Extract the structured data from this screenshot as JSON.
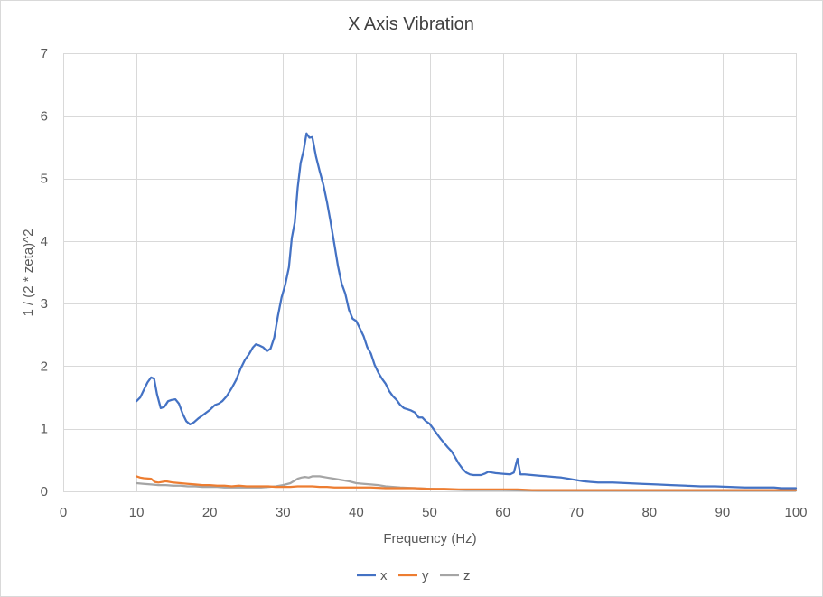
{
  "chart_data": {
    "type": "line",
    "title": "X Axis Vibration",
    "xlabel": "Frequency (Hz)",
    "ylabel": "1 / (2 * zeta)^2",
    "xlim": [
      0,
      100
    ],
    "ylim": [
      0,
      7
    ],
    "xticks": [
      0,
      10,
      20,
      30,
      40,
      50,
      60,
      70,
      80,
      90,
      100
    ],
    "yticks": [
      0,
      1,
      2,
      3,
      4,
      5,
      6,
      7
    ],
    "grid": true,
    "legend": "bottom",
    "series": [
      {
        "name": "x",
        "color": "#4472C4",
        "points": [
          [
            10,
            1.44
          ],
          [
            10.5,
            1.5
          ],
          [
            11,
            1.62
          ],
          [
            11.5,
            1.74
          ],
          [
            12,
            1.82
          ],
          [
            12.4,
            1.8
          ],
          [
            12.8,
            1.55
          ],
          [
            13.3,
            1.33
          ],
          [
            13.8,
            1.35
          ],
          [
            14.3,
            1.44
          ],
          [
            14.8,
            1.46
          ],
          [
            15.3,
            1.47
          ],
          [
            15.8,
            1.4
          ],
          [
            16.3,
            1.24
          ],
          [
            16.8,
            1.12
          ],
          [
            17.3,
            1.07
          ],
          [
            17.8,
            1.1
          ],
          [
            18.5,
            1.17
          ],
          [
            19.2,
            1.23
          ],
          [
            20,
            1.3
          ],
          [
            20.7,
            1.38
          ],
          [
            21.2,
            1.4
          ],
          [
            21.7,
            1.44
          ],
          [
            22.3,
            1.52
          ],
          [
            23,
            1.65
          ],
          [
            23.6,
            1.78
          ],
          [
            24.2,
            1.96
          ],
          [
            24.8,
            2.1
          ],
          [
            25.4,
            2.2
          ],
          [
            25.9,
            2.3
          ],
          [
            26.3,
            2.35
          ],
          [
            26.8,
            2.33
          ],
          [
            27.3,
            2.3
          ],
          [
            27.8,
            2.24
          ],
          [
            28.3,
            2.28
          ],
          [
            28.8,
            2.46
          ],
          [
            29.3,
            2.8
          ],
          [
            29.8,
            3.1
          ],
          [
            30.3,
            3.3
          ],
          [
            30.8,
            3.58
          ],
          [
            31.2,
            4.05
          ],
          [
            31.6,
            4.3
          ],
          [
            32,
            4.85
          ],
          [
            32.4,
            5.25
          ],
          [
            32.8,
            5.44
          ],
          [
            33.2,
            5.72
          ],
          [
            33.6,
            5.65
          ],
          [
            34,
            5.66
          ],
          [
            34.5,
            5.35
          ],
          [
            35,
            5.12
          ],
          [
            35.5,
            4.9
          ],
          [
            36,
            4.62
          ],
          [
            36.5,
            4.3
          ],
          [
            37,
            3.95
          ],
          [
            37.5,
            3.6
          ],
          [
            38,
            3.32
          ],
          [
            38.5,
            3.16
          ],
          [
            39,
            2.9
          ],
          [
            39.5,
            2.76
          ],
          [
            40,
            2.72
          ],
          [
            40.5,
            2.6
          ],
          [
            41,
            2.48
          ],
          [
            41.5,
            2.3
          ],
          [
            42,
            2.2
          ],
          [
            42.5,
            2.02
          ],
          [
            43,
            1.9
          ],
          [
            43.5,
            1.8
          ],
          [
            44,
            1.72
          ],
          [
            44.5,
            1.6
          ],
          [
            45,
            1.52
          ],
          [
            45.5,
            1.46
          ],
          [
            46,
            1.38
          ],
          [
            46.5,
            1.33
          ],
          [
            47,
            1.31
          ],
          [
            47.5,
            1.29
          ],
          [
            48,
            1.26
          ],
          [
            48.5,
            1.18
          ],
          [
            49,
            1.18
          ],
          [
            49.5,
            1.12
          ],
          [
            50,
            1.08
          ],
          [
            50.5,
            1.0
          ],
          [
            51,
            0.92
          ],
          [
            51.5,
            0.84
          ],
          [
            52,
            0.77
          ],
          [
            52.5,
            0.7
          ],
          [
            53,
            0.64
          ],
          [
            53.5,
            0.54
          ],
          [
            54,
            0.44
          ],
          [
            54.5,
            0.36
          ],
          [
            55,
            0.3
          ],
          [
            55.5,
            0.27
          ],
          [
            56,
            0.26
          ],
          [
            57,
            0.26
          ],
          [
            57.5,
            0.28
          ],
          [
            58,
            0.31
          ],
          [
            58.5,
            0.3
          ],
          [
            59,
            0.29
          ],
          [
            60,
            0.28
          ],
          [
            61,
            0.27
          ],
          [
            61.5,
            0.3
          ],
          [
            62,
            0.52
          ],
          [
            62.4,
            0.27
          ],
          [
            63,
            0.27
          ],
          [
            64,
            0.26
          ],
          [
            65,
            0.25
          ],
          [
            66,
            0.24
          ],
          [
            67,
            0.23
          ],
          [
            68,
            0.22
          ],
          [
            69,
            0.2
          ],
          [
            70,
            0.18
          ],
          [
            71,
            0.16
          ],
          [
            72,
            0.15
          ],
          [
            73,
            0.14
          ],
          [
            75,
            0.14
          ],
          [
            77,
            0.13
          ],
          [
            79,
            0.12
          ],
          [
            81,
            0.11
          ],
          [
            83,
            0.1
          ],
          [
            85,
            0.09
          ],
          [
            87,
            0.08
          ],
          [
            89,
            0.08
          ],
          [
            91,
            0.07
          ],
          [
            93,
            0.06
          ],
          [
            95,
            0.06
          ],
          [
            97,
            0.06
          ],
          [
            98,
            0.05
          ],
          [
            100,
            0.05
          ]
        ]
      },
      {
        "name": "y",
        "color": "#ED7D31",
        "points": [
          [
            10,
            0.24
          ],
          [
            10.5,
            0.22
          ],
          [
            11,
            0.21
          ],
          [
            12,
            0.2
          ],
          [
            12.5,
            0.15
          ],
          [
            13,
            0.14
          ],
          [
            14,
            0.16
          ],
          [
            15,
            0.14
          ],
          [
            16,
            0.13
          ],
          [
            17,
            0.12
          ],
          [
            18,
            0.11
          ],
          [
            19,
            0.1
          ],
          [
            20,
            0.1
          ],
          [
            21,
            0.09
          ],
          [
            22,
            0.09
          ],
          [
            23,
            0.08
          ],
          [
            24,
            0.09
          ],
          [
            25,
            0.08
          ],
          [
            26,
            0.08
          ],
          [
            27,
            0.08
          ],
          [
            28,
            0.08
          ],
          [
            29,
            0.07
          ],
          [
            30,
            0.07
          ],
          [
            31,
            0.07
          ],
          [
            32,
            0.08
          ],
          [
            33,
            0.08
          ],
          [
            34,
            0.08
          ],
          [
            35,
            0.07
          ],
          [
            36,
            0.07
          ],
          [
            37,
            0.06
          ],
          [
            38,
            0.06
          ],
          [
            40,
            0.06
          ],
          [
            42,
            0.06
          ],
          [
            44,
            0.05
          ],
          [
            46,
            0.05
          ],
          [
            48,
            0.05
          ],
          [
            50,
            0.04
          ],
          [
            52,
            0.04
          ],
          [
            54,
            0.03
          ],
          [
            56,
            0.03
          ],
          [
            58,
            0.03
          ],
          [
            60,
            0.03
          ],
          [
            62,
            0.03
          ],
          [
            64,
            0.02
          ],
          [
            66,
            0.02
          ],
          [
            70,
            0.02
          ],
          [
            75,
            0.02
          ],
          [
            80,
            0.02
          ],
          [
            85,
            0.02
          ],
          [
            90,
            0.02
          ],
          [
            95,
            0.02
          ],
          [
            100,
            0.02
          ]
        ]
      },
      {
        "name": "z",
        "color": "#A5A5A5",
        "points": [
          [
            10,
            0.13
          ],
          [
            11,
            0.12
          ],
          [
            12,
            0.11
          ],
          [
            13,
            0.1
          ],
          [
            14,
            0.1
          ],
          [
            15,
            0.09
          ],
          [
            16,
            0.09
          ],
          [
            17,
            0.08
          ],
          [
            18,
            0.08
          ],
          [
            19,
            0.07
          ],
          [
            20,
            0.07
          ],
          [
            21,
            0.07
          ],
          [
            22,
            0.06
          ],
          [
            23,
            0.06
          ],
          [
            24,
            0.06
          ],
          [
            25,
            0.06
          ],
          [
            26,
            0.06
          ],
          [
            27,
            0.06
          ],
          [
            28,
            0.07
          ],
          [
            29,
            0.08
          ],
          [
            30,
            0.1
          ],
          [
            31,
            0.13
          ],
          [
            32,
            0.2
          ],
          [
            32.5,
            0.22
          ],
          [
            33,
            0.23
          ],
          [
            33.5,
            0.22
          ],
          [
            34,
            0.24
          ],
          [
            35,
            0.24
          ],
          [
            36,
            0.22
          ],
          [
            37,
            0.2
          ],
          [
            38,
            0.18
          ],
          [
            39,
            0.16
          ],
          [
            40,
            0.13
          ],
          [
            41,
            0.12
          ],
          [
            42,
            0.11
          ],
          [
            43,
            0.1
          ],
          [
            44,
            0.08
          ],
          [
            45,
            0.07
          ],
          [
            46,
            0.06
          ],
          [
            48,
            0.05
          ],
          [
            50,
            0.04
          ],
          [
            52,
            0.03
          ],
          [
            55,
            0.02
          ],
          [
            60,
            0.02
          ],
          [
            65,
            0.01
          ],
          [
            70,
            0.01
          ],
          [
            75,
            0.01
          ],
          [
            80,
            0.01
          ],
          [
            85,
            0.01
          ],
          [
            90,
            0.01
          ],
          [
            95,
            0.01
          ],
          [
            100,
            0.01
          ]
        ]
      }
    ]
  }
}
